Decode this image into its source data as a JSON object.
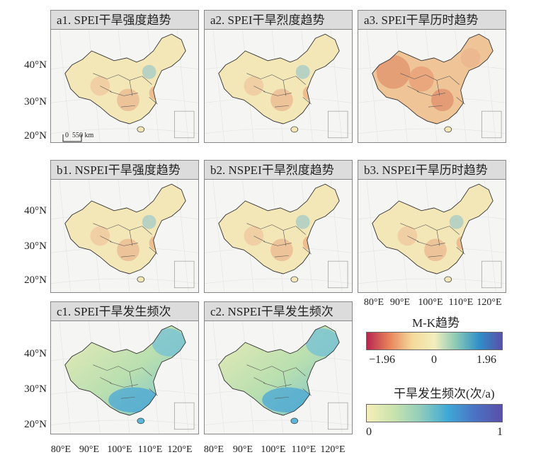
{
  "panels": [
    {
      "id": "a1",
      "title": "a1. SPEI干旱强度趋势",
      "scheme": "drought"
    },
    {
      "id": "a2",
      "title": "a2. SPEI干旱烈度趋势",
      "scheme": "drought"
    },
    {
      "id": "a3",
      "title": "a3. SPEI干旱历时趋势",
      "scheme": "drought"
    },
    {
      "id": "b1",
      "title": "b1. NSPEI干旱强度趋势",
      "scheme": "drought"
    },
    {
      "id": "b2",
      "title": "b2. NSPEI干旱烈度趋势",
      "scheme": "drought"
    },
    {
      "id": "b3",
      "title": "b3. NSPEI干旱历时趋势",
      "scheme": "drought"
    },
    {
      "id": "c1",
      "title": "c1. SPEI干旱发生频次",
      "scheme": "frequency"
    },
    {
      "id": "c2",
      "title": "c2. NSPEI干旱发生频次",
      "scheme": "frequency"
    }
  ],
  "axes": {
    "lat_labels": [
      "40°N",
      "30°N",
      "20°N"
    ],
    "lon_labels": [
      "80°E",
      "90°E",
      "100°E",
      "110°E",
      "120°E"
    ]
  },
  "scale_bar": {
    "label": "0  550 km"
  },
  "legend": {
    "mk": {
      "title": "M-K趋势",
      "ticks": [
        "−1.96",
        "0",
        "1.96"
      ],
      "colors": [
        "#b8264f",
        "#e8835a",
        "#f3d99a",
        "#f3eebc",
        "#86c8b6",
        "#2f8fc9",
        "#5a4fa8"
      ]
    },
    "freq": {
      "title": "干旱发生频次(次/a)",
      "ticks": [
        "0",
        "1"
      ],
      "colors": [
        "#f6eeb8",
        "#c9e3ae",
        "#8fcdbb",
        "#3ea8d6",
        "#4a72c4",
        "#5a4fa8"
      ]
    }
  }
}
